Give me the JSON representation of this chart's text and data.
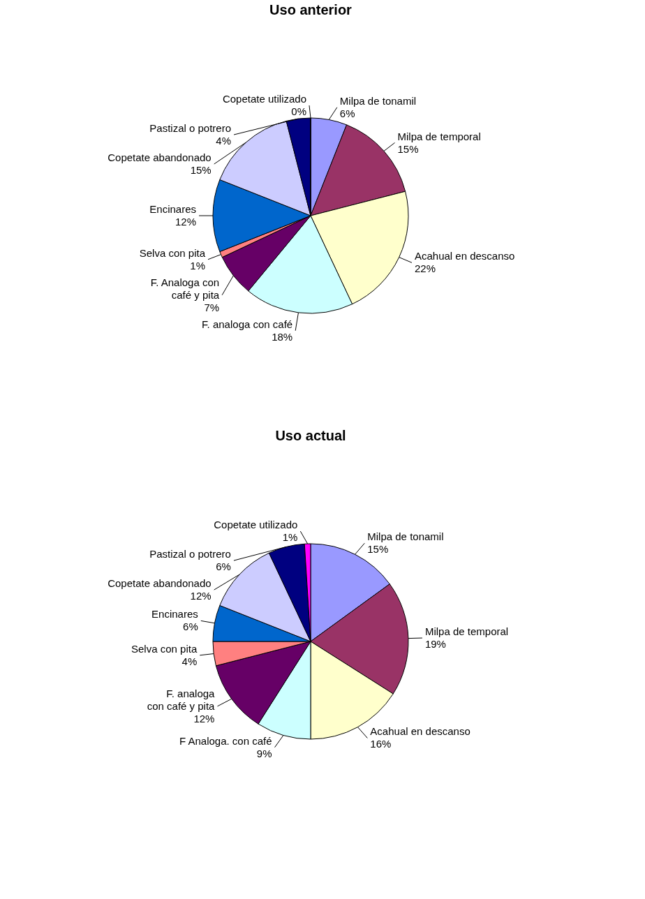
{
  "chart_data": [
    {
      "type": "pie",
      "title": "Uso anterior",
      "categories": [
        "Milpa de tonamil",
        "Milpa de temporal",
        "Acahual en descanso",
        "F. analoga con café",
        "F. Analoga con café y pita",
        "Selva con pita",
        "Encinares",
        "Copetate abandonado",
        "Pastizal o potrero",
        "Copetate utilizado"
      ],
      "values": [
        6,
        15,
        22,
        18,
        7,
        1,
        12,
        15,
        4,
        0
      ],
      "value_labels": [
        "6%",
        "15%",
        "22%",
        "18%",
        "7%",
        "1%",
        "12%",
        "15%",
        "4%",
        "0%"
      ],
      "colors": [
        "#9999ff",
        "#993366",
        "#ffffcc",
        "#ccffff",
        "#660066",
        "#ff8080",
        "#0066cc",
        "#ccccff",
        "#000080",
        "#ff00ff"
      ]
    },
    {
      "type": "pie",
      "title": "Uso actual",
      "categories": [
        "Milpa de tonamil",
        "Milpa de temporal",
        "Acahual en descanso",
        "F Analoga. con café",
        "F. analoga  con café y pita",
        "Selva con pita",
        "Encinares",
        "Copetate abandonado",
        "Pastizal o potrero",
        "Copetate utilizado"
      ],
      "values": [
        15,
        19,
        16,
        9,
        12,
        4,
        6,
        12,
        6,
        1
      ],
      "value_labels": [
        "15%",
        "19%",
        "16%",
        "9%",
        "12%",
        "4%",
        "6%",
        "12%",
        "6%",
        "1%"
      ],
      "colors": [
        "#9999ff",
        "#993366",
        "#ffffcc",
        "#ccffff",
        "#660066",
        "#ff8080",
        "#0066cc",
        "#ccccff",
        "#000080",
        "#ff00ff"
      ]
    }
  ]
}
